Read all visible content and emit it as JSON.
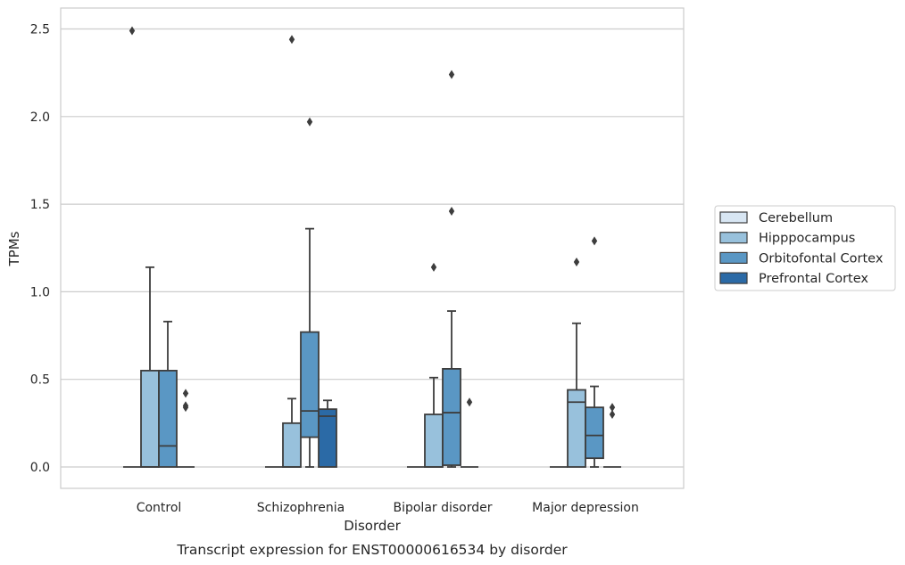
{
  "chart_data": {
    "type": "box",
    "title": "",
    "xlabel": "Disorder",
    "ylabel": "TPMs",
    "caption": "Transcript expression for ENST00000616534 by disorder",
    "categories": [
      "Control",
      "Schizophrenia",
      "Bipolar disorder",
      "Major depression"
    ],
    "ylim": [
      -0.12,
      2.62
    ],
    "yticks": [
      "0.0",
      "0.5",
      "1.0",
      "1.5",
      "2.0",
      "2.5"
    ],
    "grid": "horizontal",
    "legend_position": "right",
    "series": [
      {
        "name": "Cerebellum",
        "color": "#d8e6f3",
        "boxes": [
          {
            "min": 0,
            "q1": 0,
            "median": 0,
            "q3": 0,
            "max": 0,
            "outliers": [
              2.49
            ]
          },
          {
            "min": 0,
            "q1": 0,
            "median": 0,
            "q3": 0,
            "max": 0,
            "outliers": []
          },
          {
            "min": 0,
            "q1": 0,
            "median": 0,
            "q3": 0,
            "max": 0,
            "outliers": []
          },
          {
            "min": 0,
            "q1": 0,
            "median": 0,
            "q3": 0,
            "max": 0,
            "outliers": []
          }
        ]
      },
      {
        "name": "Hipppocampus",
        "color": "#98c1dc",
        "boxes": [
          {
            "min": 0,
            "q1": 0,
            "median": 0,
            "q3": 0.55,
            "max": 1.14,
            "outliers": []
          },
          {
            "min": 0,
            "q1": 0,
            "median": 0,
            "q3": 0.25,
            "max": 0.39,
            "outliers": [
              2.44
            ]
          },
          {
            "min": 0,
            "q1": 0,
            "median": 0,
            "q3": 0.3,
            "max": 0.51,
            "outliers": [
              1.14
            ]
          },
          {
            "min": 0,
            "q1": 0,
            "median": 0.37,
            "q3": 0.44,
            "max": 0.82,
            "outliers": [
              1.17
            ]
          }
        ]
      },
      {
        "name": "Orbitofontal Cortex",
        "color": "#5a97c4",
        "boxes": [
          {
            "min": 0,
            "q1": 0,
            "median": 0.12,
            "q3": 0.55,
            "max": 0.83,
            "outliers": []
          },
          {
            "min": 0,
            "q1": 0.17,
            "median": 0.32,
            "q3": 0.77,
            "max": 1.36,
            "outliers": [
              1.97
            ]
          },
          {
            "min": 0,
            "q1": 0.01,
            "median": 0.31,
            "q3": 0.56,
            "max": 0.89,
            "outliers": [
              1.46,
              2.24
            ]
          },
          {
            "min": 0,
            "q1": 0.05,
            "median": 0.18,
            "q3": 0.34,
            "max": 0.46,
            "outliers": [
              1.29
            ]
          }
        ]
      },
      {
        "name": "Prefrontal Cortex",
        "color": "#2b6aa6",
        "boxes": [
          {
            "min": 0,
            "q1": 0,
            "median": 0,
            "q3": 0,
            "max": 0,
            "outliers": [
              0.34,
              0.35,
              0.42
            ]
          },
          {
            "min": 0,
            "q1": 0,
            "median": 0.29,
            "q3": 0.33,
            "max": 0.38,
            "outliers": []
          },
          {
            "min": 0,
            "q1": 0,
            "median": 0,
            "q3": 0,
            "max": 0,
            "outliers": [
              0.37
            ]
          },
          {
            "min": 0,
            "q1": 0,
            "median": 0,
            "q3": 0,
            "max": 0,
            "outliers": [
              0.3,
              0.34
            ]
          }
        ]
      }
    ]
  }
}
